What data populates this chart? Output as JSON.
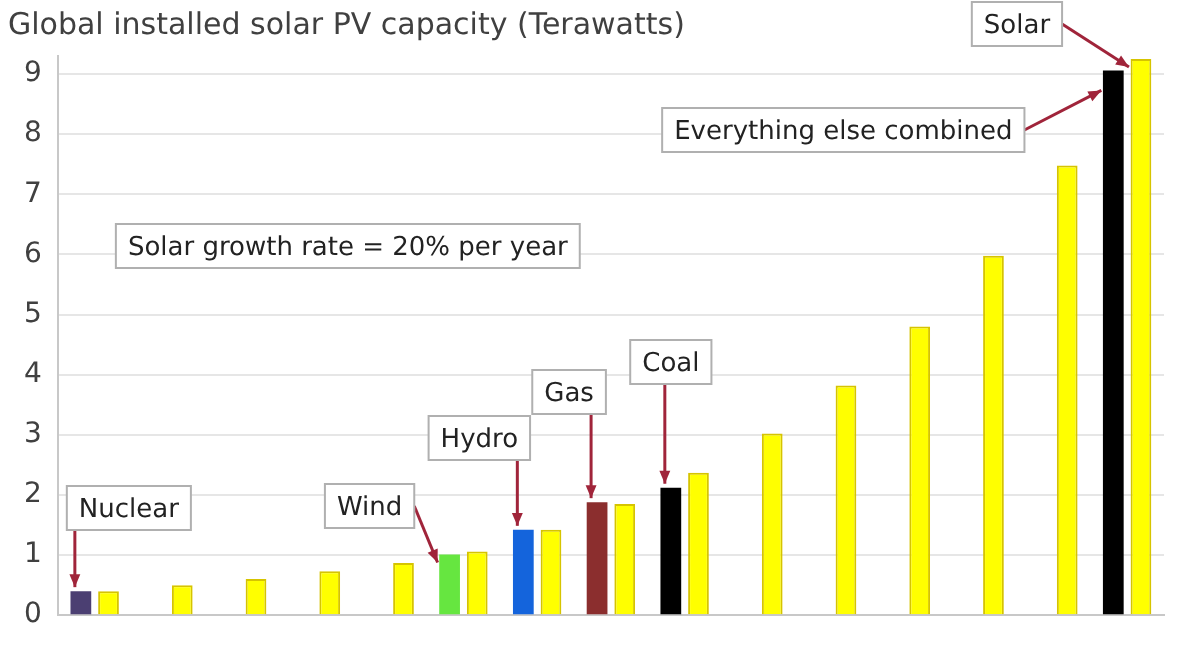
{
  "chart_data": {
    "type": "bar",
    "title": "Global installed solar PV capacity (Terawatts)",
    "categories": [
      null,
      null,
      null,
      null,
      null,
      null,
      null,
      null,
      null,
      null,
      null,
      null,
      null,
      null,
      null
    ],
    "series": [
      {
        "colors": [
          "#4b3f72",
          null,
          null,
          null,
          null,
          "#66e640",
          "#1464dc",
          "#8b2e2e",
          "#000000",
          null,
          null,
          null,
          null,
          null,
          "#000000"
        ],
        "color": "#000000",
        "values": [
          0.4,
          null,
          null,
          null,
          null,
          1.01,
          1.42,
          1.88,
          2.12,
          null,
          null,
          null,
          null,
          null,
          9.06
        ]
      },
      {
        "color": "#ffff00",
        "values": [
          0.4,
          0.5,
          0.6,
          0.73,
          0.87,
          1.06,
          1.42,
          1.85,
          2.37,
          3.02,
          3.82,
          4.8,
          5.98,
          7.48,
          9.25
        ]
      }
    ],
    "annotations": [
      "Nuclear",
      "Wind",
      "Hydro",
      "Gas",
      "Coal",
      "Everything else combined",
      "Solar",
      "Solar growth rate = 20% per year"
    ],
    "ylim": [
      0,
      9.3
    ],
    "yticks": [
      0,
      1,
      2,
      3,
      4,
      5,
      6,
      7,
      8,
      9
    ],
    "grid": "y",
    "legend": false
  }
}
